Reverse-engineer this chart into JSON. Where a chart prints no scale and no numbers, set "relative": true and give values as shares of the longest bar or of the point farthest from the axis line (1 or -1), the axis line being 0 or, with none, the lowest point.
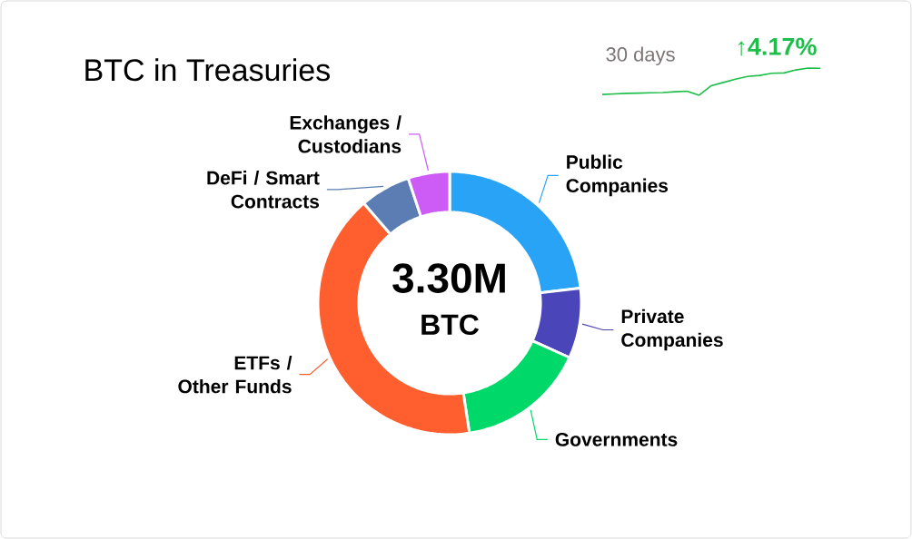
{
  "chart_data": [
    {
      "type": "donut",
      "title": "BTC in Treasuries",
      "categories": [
        "Public Companies",
        "Private Companies",
        "Governments",
        "ETFs / Other Funds",
        "DeFi / Smart Contracts",
        "Exchanges / Custodians"
      ],
      "values": [
        23.2,
        8.6,
        15.8,
        41.1,
        6.2,
        5.1
      ],
      "colors": [
        "#29a3f5",
        "#4a45b8",
        "#00d96a",
        "#ff5f2e",
        "#5b7db3",
        "#cc5cf5"
      ],
      "annotations": [
        "3.30M",
        "BTC"
      ]
    },
    {
      "type": "line",
      "title": "30 days",
      "relative": true,
      "categories": [
        null,
        null,
        null,
        null,
        null,
        null,
        null,
        null,
        null,
        null,
        null,
        null,
        null,
        null,
        null,
        null,
        null,
        null,
        null
      ],
      "values": [
        0.03,
        0.05,
        0.07,
        0.08,
        0.09,
        0.1,
        0.13,
        0.15,
        0.0,
        0.35,
        0.47,
        0.59,
        0.69,
        0.73,
        0.81,
        0.82,
        0.93,
        1.0,
        0.99
      ],
      "color": "#1ebe4a",
      "annotations": [
        "↑4.17%"
      ]
    }
  ]
}
